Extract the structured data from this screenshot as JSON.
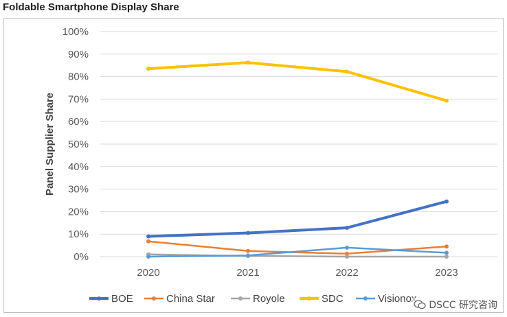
{
  "page": {
    "title": "Foldable Smartphone Display Share"
  },
  "watermark": {
    "text": "DSCC 研究咨询",
    "icon": "wechat-icon"
  },
  "chart_data": {
    "type": "line",
    "title": "",
    "xlabel": "",
    "ylabel": "Panel Supplier Share",
    "x": [
      "2020",
      "2021",
      "2022",
      "2023"
    ],
    "ylim": [
      0,
      100
    ],
    "yticks": [
      "0%",
      "10%",
      "20%",
      "30%",
      "40%",
      "50%",
      "60%",
      "70%",
      "80%",
      "90%",
      "100%"
    ],
    "grid": true,
    "legend_position": "bottom",
    "series": [
      {
        "name": "BOE",
        "color": "#4472C4",
        "values": [
          9,
          10.5,
          12.8,
          24.5
        ]
      },
      {
        "name": "China Star",
        "color": "#ED7D31",
        "values": [
          6.8,
          2.5,
          1.3,
          4.5
        ]
      },
      {
        "name": "Royole",
        "color": "#A5A5A5",
        "values": [
          1,
          0.3,
          0,
          0
        ]
      },
      {
        "name": "SDC",
        "color": "#FFC000",
        "values": [
          83.5,
          86.2,
          82.2,
          69.3
        ]
      },
      {
        "name": "Visionox",
        "color": "#5B9BD5",
        "values": [
          0,
          0.5,
          4,
          1.7
        ]
      }
    ]
  }
}
